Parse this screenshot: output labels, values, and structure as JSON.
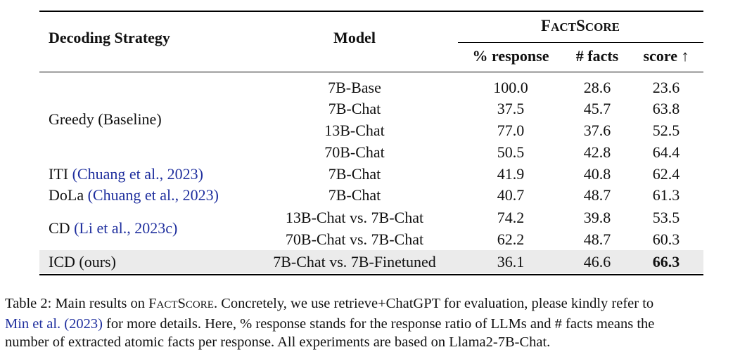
{
  "table": {
    "headers": {
      "decoding_strategy": "Decoding Strategy",
      "model": "Model",
      "factscore_group": "FACTSCORE",
      "response": "% response",
      "facts": "# facts",
      "score": "score ↑"
    },
    "groups": [
      {
        "strategy": "Greedy (Baseline)",
        "cite": ""
      },
      {
        "strategy": "ITI",
        "cite": "(Chuang et al., 2023)"
      },
      {
        "strategy": "DoLa",
        "cite": "(Chuang et al., 2023)"
      },
      {
        "strategy": "CD",
        "cite": "(Li et al., 2023c)"
      },
      {
        "strategy": "ICD (ours)",
        "cite": ""
      }
    ],
    "rows": [
      {
        "model": "7B-Base",
        "response": "100.0",
        "facts": "28.6",
        "score": "23.6"
      },
      {
        "model": "7B-Chat",
        "response": "37.5",
        "facts": "45.7",
        "score": "63.8"
      },
      {
        "model": "13B-Chat",
        "response": "77.0",
        "facts": "37.6",
        "score": "52.5"
      },
      {
        "model": "70B-Chat",
        "response": "50.5",
        "facts": "42.8",
        "score": "64.4"
      },
      {
        "model": "7B-Chat",
        "response": "41.9",
        "facts": "40.8",
        "score": "62.4"
      },
      {
        "model": "7B-Chat",
        "response": "40.7",
        "facts": "48.7",
        "score": "61.3"
      },
      {
        "model": "13B-Chat vs. 7B-Chat",
        "response": "74.2",
        "facts": "39.8",
        "score": "53.5"
      },
      {
        "model": "70B-Chat vs. 7B-Chat",
        "response": "62.2",
        "facts": "48.7",
        "score": "60.3"
      },
      {
        "model": "7B-Chat vs. 7B-Finetuned",
        "response": "36.1",
        "facts": "46.6",
        "score": "66.3"
      }
    ]
  },
  "caption": {
    "label": "Table 2:",
    "text_1": "Main results on",
    "factscore": "FACTSCORE",
    "text_2": ". Concretely, we use retrieve+ChatGPT for evaluation, please kindly refer to",
    "cite_author": "Min et al.",
    "cite_year": "(2023)",
    "text_3": "for more details. Here, % response stands for the response ratio of LLMs and # facts means the",
    "text_4": "number of extracted atomic facts per response. All experiments are based on Llama2-7B-Chat."
  }
}
